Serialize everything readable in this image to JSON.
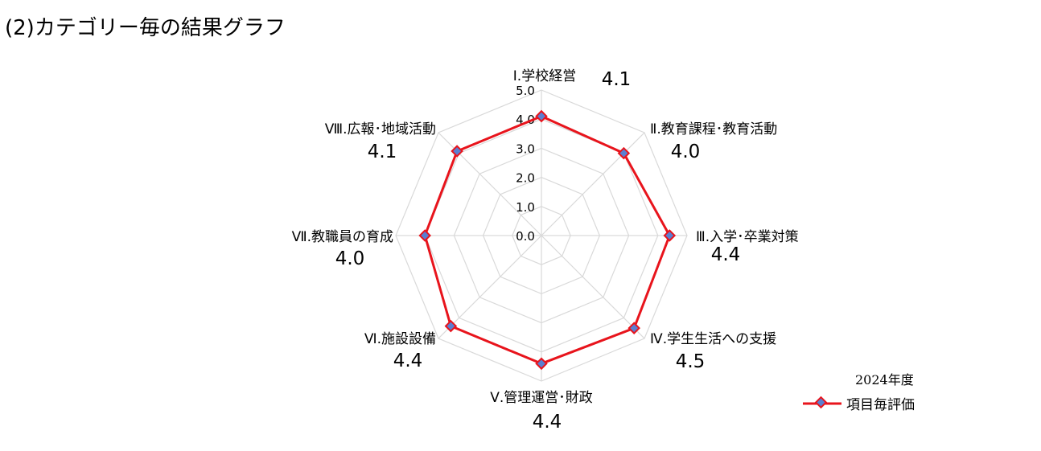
{
  "page": {
    "title": "(2)カテゴリー毎の結果グラフ"
  },
  "chart_data": {
    "type": "radar",
    "categories": [
      "Ⅰ.学校経営",
      "Ⅱ.教育課程･教育活動",
      "Ⅲ.入学･卒業対策",
      "Ⅳ.学生生活への支援",
      "Ⅴ.管理運営･財政",
      "Ⅵ.施設設備",
      "Ⅶ.教職員の育成",
      "Ⅷ.広報･地域活動"
    ],
    "series": [
      {
        "name": "項目毎評価",
        "values": [
          4.1,
          4.0,
          4.4,
          4.5,
          4.4,
          4.4,
          4.0,
          4.1
        ],
        "color": "#e8141c",
        "marker_color": "#5b7fd1"
      }
    ],
    "value_labels": [
      "4.1",
      "4.0",
      "4.4",
      "4.5",
      "4.4",
      "4.4",
      "4.0",
      "4.1"
    ],
    "radial_ticks": [
      "0.0",
      "1.0",
      "2.0",
      "3.0",
      "4.0",
      "5.0"
    ],
    "rlim": [
      0,
      5
    ],
    "grid": true,
    "grid_color": "#d9d9d9",
    "legend_title": "2024年度",
    "legend_position": "bottom-right"
  }
}
